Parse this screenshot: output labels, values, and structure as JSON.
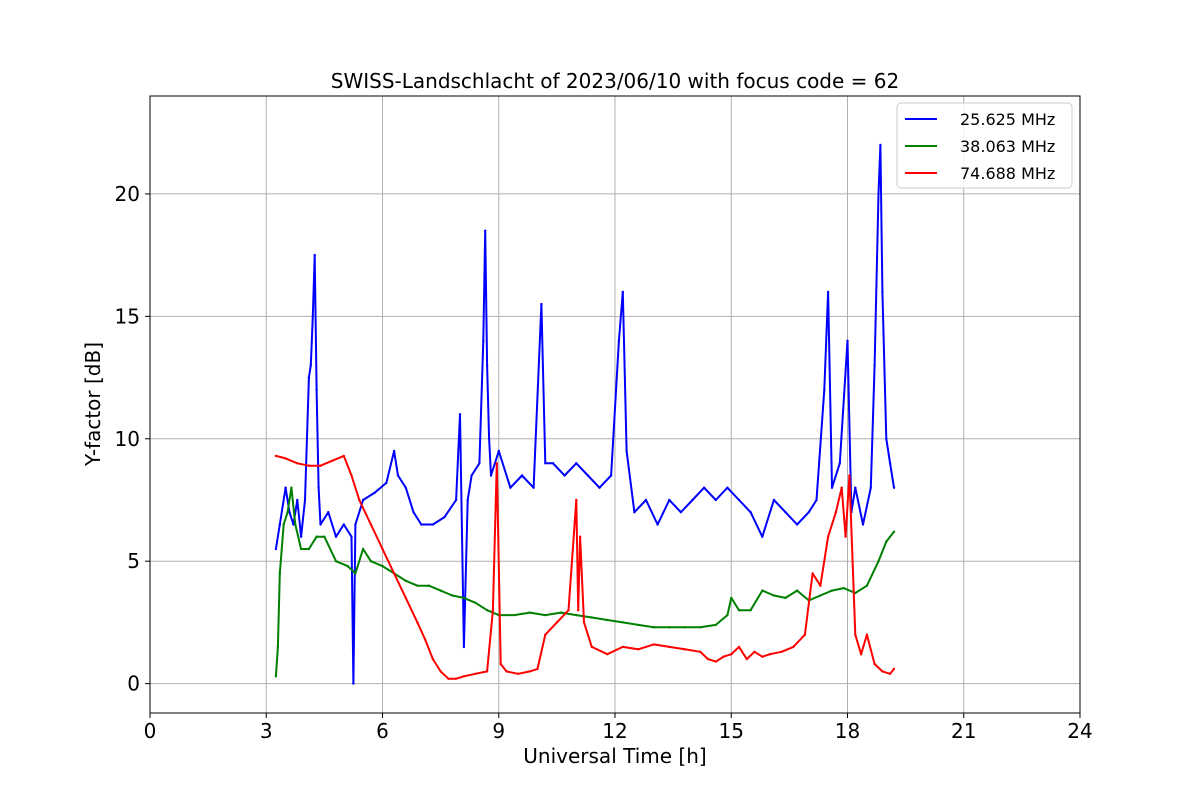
{
  "chart_data": {
    "type": "line",
    "title": "SWISS-Landschlacht of 2023/06/10 with focus code = 62",
    "xlabel": "Universal Time [h]",
    "ylabel": "Y-factor [dB]",
    "xlim": [
      0,
      24
    ],
    "ylim": [
      -1.2,
      24
    ],
    "xticks": [
      0,
      3,
      6,
      9,
      12,
      15,
      18,
      21,
      24
    ],
    "yticks": [
      0,
      5,
      10,
      15,
      20
    ],
    "grid": true,
    "legend_position": "top-right",
    "series": [
      {
        "name": "25.625 MHz",
        "color": "#0000ff",
        "x": [
          3.25,
          3.35,
          3.5,
          3.6,
          3.7,
          3.8,
          3.9,
          4.0,
          4.1,
          4.15,
          4.2,
          4.25,
          4.3,
          4.35,
          4.4,
          4.6,
          4.8,
          5.0,
          5.2,
          5.25,
          5.3,
          5.5,
          5.8,
          6.1,
          6.3,
          6.4,
          6.6,
          6.8,
          7.0,
          7.3,
          7.6,
          7.9,
          8.0,
          8.1,
          8.2,
          8.3,
          8.5,
          8.6,
          8.65,
          8.7,
          8.75,
          8.8,
          9.0,
          9.3,
          9.6,
          9.9,
          10.1,
          10.2,
          10.4,
          10.7,
          11.0,
          11.3,
          11.6,
          11.9,
          12.1,
          12.2,
          12.3,
          12.5,
          12.8,
          13.1,
          13.4,
          13.7,
          14.0,
          14.3,
          14.6,
          14.9,
          15.2,
          15.5,
          15.8,
          16.1,
          16.4,
          16.7,
          17.0,
          17.2,
          17.4,
          17.5,
          17.6,
          17.8,
          18.0,
          18.1,
          18.2,
          18.4,
          18.6,
          18.7,
          18.8,
          18.85,
          18.9,
          19.0,
          19.1,
          19.2
        ],
        "values": [
          5.5,
          6.5,
          8.0,
          7.0,
          6.5,
          7.5,
          6.0,
          7.5,
          12.5,
          13.0,
          15.0,
          17.5,
          12.0,
          8.0,
          6.5,
          7.0,
          6.0,
          6.5,
          6.0,
          0.0,
          6.5,
          7.5,
          7.8,
          8.2,
          9.5,
          8.5,
          8.0,
          7.0,
          6.5,
          6.5,
          6.8,
          7.5,
          11.0,
          1.5,
          7.5,
          8.5,
          9.0,
          14.0,
          18.5,
          13.0,
          10.0,
          8.5,
          9.5,
          8.0,
          8.5,
          8.0,
          15.5,
          9.0,
          9.0,
          8.5,
          9.0,
          8.5,
          8.0,
          8.5,
          14.0,
          16.0,
          9.5,
          7.0,
          7.5,
          6.5,
          7.5,
          7.0,
          7.5,
          8.0,
          7.5,
          8.0,
          7.5,
          7.0,
          6.0,
          7.5,
          7.0,
          6.5,
          7.0,
          7.5,
          12.0,
          16.0,
          8.0,
          9.0,
          14.0,
          7.0,
          8.0,
          6.5,
          8.0,
          13.0,
          20.0,
          22.0,
          16.0,
          10.0,
          9.0,
          8.0
        ]
      },
      {
        "name": "38.063 MHz",
        "color": "#008000",
        "x": [
          3.25,
          3.3,
          3.35,
          3.45,
          3.55,
          3.65,
          3.75,
          3.9,
          4.1,
          4.3,
          4.5,
          4.8,
          5.1,
          5.3,
          5.5,
          5.7,
          6.0,
          6.3,
          6.6,
          6.9,
          7.2,
          7.5,
          7.8,
          8.1,
          8.4,
          8.7,
          9.0,
          9.4,
          9.8,
          10.2,
          10.6,
          11.0,
          11.4,
          11.8,
          12.2,
          12.6,
          13.0,
          13.4,
          13.8,
          14.2,
          14.6,
          14.9,
          15.0,
          15.2,
          15.5,
          15.8,
          16.1,
          16.4,
          16.7,
          17.0,
          17.3,
          17.6,
          17.9,
          18.2,
          18.5,
          18.8,
          19.0,
          19.2
        ],
        "values": [
          0.3,
          1.5,
          4.5,
          6.5,
          7.0,
          8.0,
          6.5,
          5.5,
          5.5,
          6.0,
          6.0,
          5.0,
          4.8,
          4.5,
          5.5,
          5.0,
          4.8,
          4.5,
          4.2,
          4.0,
          4.0,
          3.8,
          3.6,
          3.5,
          3.3,
          3.0,
          2.8,
          2.8,
          2.9,
          2.8,
          2.9,
          2.8,
          2.7,
          2.6,
          2.5,
          2.4,
          2.3,
          2.3,
          2.3,
          2.3,
          2.4,
          2.8,
          3.5,
          3.0,
          3.0,
          3.8,
          3.6,
          3.5,
          3.8,
          3.4,
          3.6,
          3.8,
          3.9,
          3.7,
          4.0,
          5.0,
          5.8,
          6.2
        ]
      },
      {
        "name": "74.688 MHz",
        "color": "#ff0000",
        "x": [
          3.25,
          3.5,
          3.8,
          4.1,
          4.4,
          4.7,
          5.0,
          5.2,
          5.4,
          5.7,
          6.0,
          6.3,
          6.6,
          6.9,
          7.1,
          7.3,
          7.5,
          7.7,
          7.9,
          8.1,
          8.4,
          8.7,
          8.85,
          8.95,
          9.05,
          9.2,
          9.5,
          9.8,
          10.0,
          10.2,
          10.5,
          10.8,
          11.0,
          11.05,
          11.1,
          11.2,
          11.4,
          11.8,
          12.2,
          12.6,
          13.0,
          13.4,
          13.8,
          14.2,
          14.4,
          14.6,
          14.8,
          15.0,
          15.2,
          15.4,
          15.6,
          15.8,
          16.0,
          16.3,
          16.6,
          16.9,
          17.1,
          17.3,
          17.5,
          17.7,
          17.85,
          17.95,
          18.05,
          18.2,
          18.35,
          18.5,
          18.7,
          18.9,
          19.1,
          19.2
        ],
        "values": [
          9.3,
          9.2,
          9.0,
          8.9,
          8.9,
          9.1,
          9.3,
          8.5,
          7.5,
          6.5,
          5.5,
          4.5,
          3.5,
          2.5,
          1.8,
          1.0,
          0.5,
          0.2,
          0.2,
          0.3,
          0.4,
          0.5,
          3.0,
          9.0,
          0.8,
          0.5,
          0.4,
          0.5,
          0.6,
          2.0,
          2.5,
          3.0,
          7.5,
          3.0,
          6.0,
          2.5,
          1.5,
          1.2,
          1.5,
          1.4,
          1.6,
          1.5,
          1.4,
          1.3,
          1.0,
          0.9,
          1.1,
          1.2,
          1.5,
          1.0,
          1.3,
          1.1,
          1.2,
          1.3,
          1.5,
          2.0,
          4.5,
          4.0,
          6.0,
          7.0,
          8.0,
          6.0,
          8.5,
          2.0,
          1.2,
          2.0,
          0.8,
          0.5,
          0.4,
          0.6
        ]
      }
    ]
  }
}
